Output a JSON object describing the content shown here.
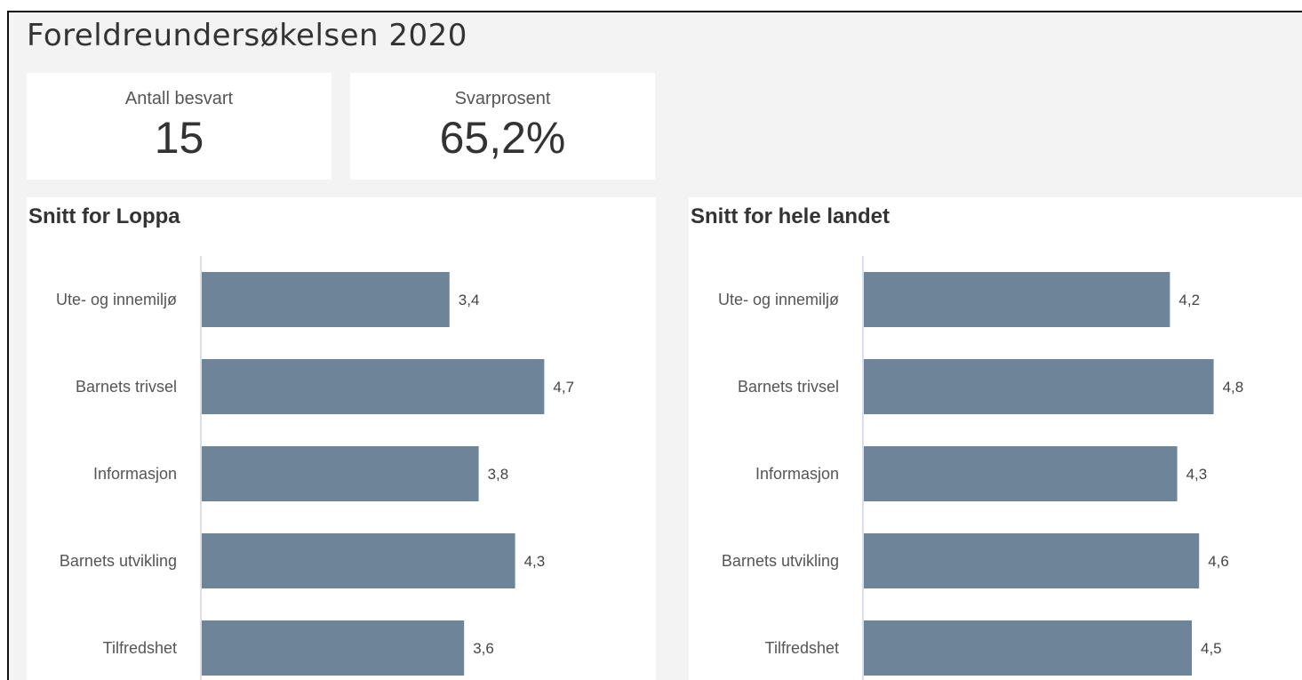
{
  "page": {
    "title": "Foreldreundersøkelsen 2020"
  },
  "kpis": [
    {
      "label": "Antall besvart",
      "value": "15"
    },
    {
      "label": "Svarprosent",
      "value": "65,2%"
    }
  ],
  "colors": {
    "bar": "#6e8499",
    "axis": "#cfd4ec",
    "background": "#f3f3f3",
    "card": "#ffffff"
  },
  "chart_data": [
    {
      "type": "bar",
      "orientation": "horizontal",
      "title": "Snitt for Loppa",
      "categories": [
        "Ute- og innemiljø",
        "Barnets trivsel",
        "Informasjon",
        "Barnets utvikling",
        "Tilfredshet"
      ],
      "values": [
        3.4,
        4.7,
        3.8,
        4.3,
        3.6
      ],
      "value_labels": [
        "3,4",
        "4,7",
        "3,8",
        "4,3",
        "3,6"
      ],
      "xlim": [
        0,
        6
      ],
      "grid": false,
      "legend": "none"
    },
    {
      "type": "bar",
      "orientation": "horizontal",
      "title": "Snitt for hele landet",
      "categories": [
        "Ute- og innemiljø",
        "Barnets trivsel",
        "Informasjon",
        "Barnets utvikling",
        "Tilfredshet"
      ],
      "values": [
        4.2,
        4.8,
        4.3,
        4.6,
        4.5
      ],
      "value_labels": [
        "4,2",
        "4,8",
        "4,3",
        "4,6",
        "4,5"
      ],
      "xlim": [
        0,
        6
      ],
      "grid": false,
      "legend": "none"
    }
  ]
}
